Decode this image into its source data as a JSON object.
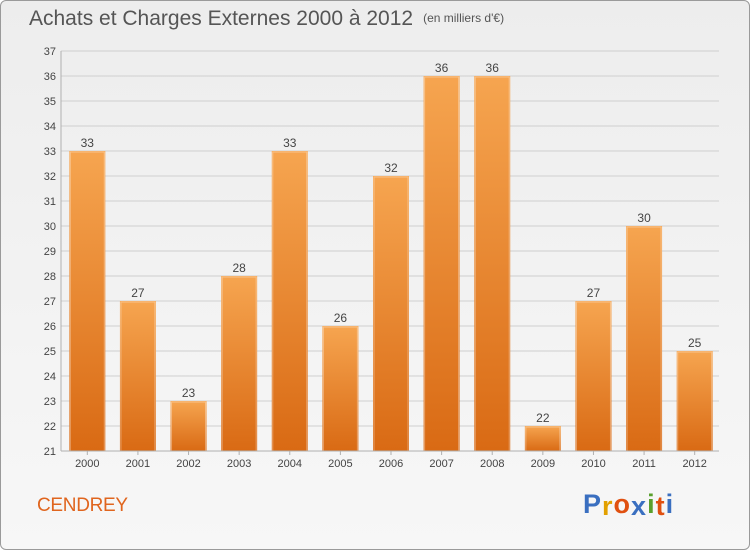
{
  "title": "Achats et Charges Externes 2000 à 2012",
  "unit": "(en milliers d'€)",
  "commune": "CENDREY",
  "logo": {
    "letters": [
      "P",
      "r",
      "o",
      "x",
      "i",
      "t",
      "i"
    ],
    "colors": [
      "#3a6fc0",
      "#e2a000",
      "#e05010",
      "#3a6fc0",
      "#5aa02c",
      "#e05010",
      "#3a6fc0"
    ]
  },
  "colors": {
    "bar_top": "#f6a550",
    "bar_bottom": "#d96a14",
    "text": "#444444",
    "grid": "#cfcfcf"
  },
  "chart_data": {
    "type": "bar",
    "categories": [
      "2000",
      "2001",
      "2002",
      "2003",
      "2004",
      "2005",
      "2006",
      "2007",
      "2008",
      "2009",
      "2010",
      "2011",
      "2012"
    ],
    "values": [
      33,
      27,
      23,
      28,
      33,
      26,
      32,
      36,
      36,
      22,
      27,
      30,
      25
    ],
    "ylim": [
      21,
      37
    ],
    "yticks": [
      21,
      22,
      23,
      24,
      25,
      26,
      27,
      28,
      29,
      30,
      31,
      32,
      33,
      34,
      35,
      36,
      37
    ],
    "grid": true,
    "data_labels": true
  }
}
